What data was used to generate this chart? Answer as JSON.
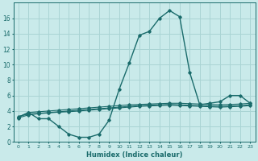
{
  "xlabel": "Humidex (Indice chaleur)",
  "xlim": [
    -0.5,
    23.5
  ],
  "ylim": [
    0,
    18
  ],
  "xticks": [
    0,
    1,
    2,
    3,
    4,
    5,
    6,
    7,
    8,
    9,
    10,
    11,
    12,
    13,
    14,
    15,
    16,
    17,
    18,
    19,
    20,
    21,
    22,
    23
  ],
  "yticks": [
    0,
    2,
    4,
    6,
    8,
    10,
    12,
    14,
    16
  ],
  "bg_color": "#c9eaea",
  "grid_color": "#aad4d4",
  "line_color": "#1a6b6b",
  "line_main_x": [
    0,
    1,
    2,
    3,
    4,
    5,
    6,
    7,
    8,
    9,
    10,
    11,
    12,
    13,
    14,
    15,
    16,
    17,
    18,
    19,
    20,
    21,
    22,
    23
  ],
  "line_main_y": [
    3.2,
    3.8,
    3.0,
    3.0,
    2.0,
    1.0,
    0.6,
    0.6,
    1.0,
    2.8,
    6.8,
    10.2,
    13.8,
    14.3,
    16.0,
    17.0,
    16.2,
    9.0,
    4.8,
    5.0,
    5.2,
    6.0,
    6.0,
    5.0
  ],
  "line1_x": [
    0,
    1,
    2,
    3,
    4,
    5,
    6,
    7,
    8,
    9,
    10,
    11,
    12,
    13,
    14,
    15,
    16,
    17,
    18,
    19,
    20,
    21,
    22,
    23
  ],
  "line1_y": [
    3.2,
    3.8,
    3.9,
    4.0,
    4.1,
    4.2,
    4.3,
    4.4,
    4.5,
    4.6,
    4.7,
    4.8,
    4.85,
    4.9,
    4.95,
    5.0,
    5.0,
    4.95,
    4.9,
    4.85,
    4.8,
    4.85,
    4.9,
    5.0
  ],
  "line2_x": [
    0,
    1,
    2,
    3,
    4,
    5,
    6,
    7,
    8,
    9,
    10,
    11,
    12,
    13,
    14,
    15,
    16,
    17,
    18,
    19,
    20,
    21,
    22,
    23
  ],
  "line2_y": [
    3.3,
    3.6,
    3.7,
    3.8,
    3.9,
    4.0,
    4.1,
    4.2,
    4.3,
    4.4,
    4.5,
    4.6,
    4.7,
    4.75,
    4.8,
    4.85,
    4.8,
    4.75,
    4.7,
    4.65,
    4.6,
    4.65,
    4.7,
    4.8
  ],
  "line3_x": [
    0,
    1,
    2,
    3,
    4,
    5,
    6,
    7,
    8,
    9,
    10,
    11,
    12,
    13,
    14,
    15,
    16,
    17,
    18,
    19,
    20,
    21,
    22,
    23
  ],
  "line3_y": [
    3.1,
    3.5,
    3.65,
    3.75,
    3.85,
    3.9,
    4.0,
    4.1,
    4.2,
    4.3,
    4.4,
    4.5,
    4.6,
    4.65,
    4.7,
    4.75,
    4.7,
    4.65,
    4.6,
    4.55,
    4.5,
    4.55,
    4.6,
    4.7
  ]
}
